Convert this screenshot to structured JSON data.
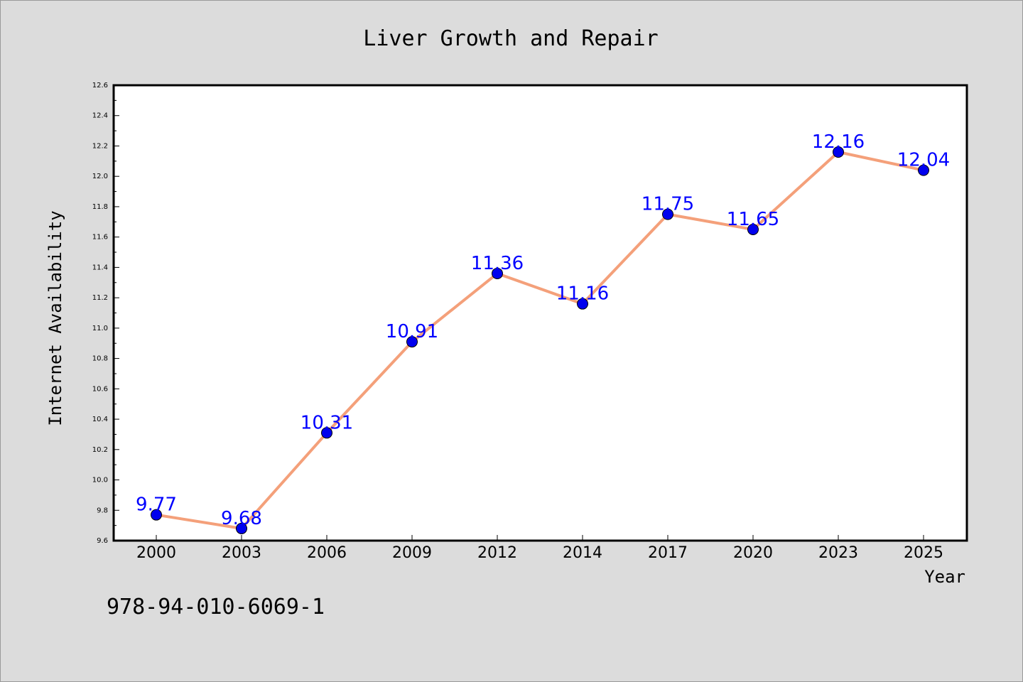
{
  "chart_data": {
    "type": "line",
    "title": "Liver Growth and Repair",
    "xlabel": "Year",
    "ylabel": "Internet Availability",
    "categories": [
      "2000",
      "2003",
      "2006",
      "2009",
      "2012",
      "2014",
      "2017",
      "2020",
      "2023",
      "2025"
    ],
    "values": [
      9.77,
      9.68,
      10.31,
      10.91,
      11.36,
      11.16,
      11.75,
      11.65,
      12.16,
      12.04
    ],
    "data_labels": [
      "9.77",
      "9.68",
      "10.31",
      "10.91",
      "11.36",
      "11.16",
      "11.75",
      "11.65",
      "12.16",
      "12.04"
    ],
    "ylim": [
      9.6,
      12.6
    ],
    "yticks": [
      "9.6",
      "9.8",
      "10.0",
      "10.2",
      "10.4",
      "10.6",
      "10.8",
      "11.0",
      "11.2",
      "11.4",
      "11.6",
      "11.8",
      "12.0",
      "12.2",
      "12.4",
      "12.6"
    ],
    "grid": false,
    "line_color": "#f4a07a",
    "marker_color": "#0000ee",
    "label_color": "#0000ff"
  },
  "annotation": "978-94-010-6069-1"
}
